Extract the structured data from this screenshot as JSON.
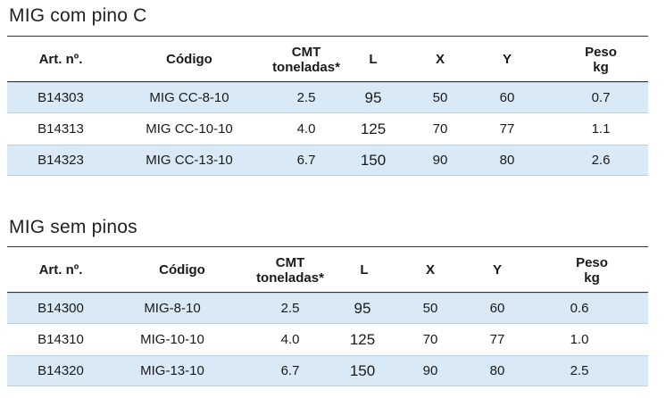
{
  "tables": [
    {
      "title": "MIG com pino C",
      "headers": {
        "art": "Art. nº.",
        "codigo": "Código",
        "cmt1": "CMT",
        "cmt2": "toneladas*",
        "l": "L",
        "x": "X",
        "y": "Y",
        "peso1": "Peso",
        "peso2": "kg"
      },
      "rows": [
        {
          "art": "B14303",
          "codigo": "MIG CC-8-10",
          "cmt": "2.5",
          "l": "95",
          "x": "50",
          "y": "60",
          "peso": "0.7"
        },
        {
          "art": "B14313",
          "codigo": "MIG CC-10-10",
          "cmt": "4.0",
          "l": "125",
          "x": "70",
          "y": "77",
          "peso": "1.1"
        },
        {
          "art": "B14323",
          "codigo": "MIG CC-13-10",
          "cmt": "6.7",
          "l": "150",
          "x": "90",
          "y": "80",
          "peso": "2.6"
        }
      ]
    },
    {
      "title": "MIG sem pinos",
      "headers": {
        "art": "Art. nº.",
        "codigo": "Código",
        "cmt1": "CMT",
        "cmt2": "toneladas*",
        "l": "L",
        "x": "X",
        "y": "Y",
        "peso1": "Peso",
        "peso2": "kg"
      },
      "rows": [
        {
          "art": "B14300",
          "codigo": "MIG-8-10",
          "cmt": "2.5",
          "l": "95",
          "x": "50",
          "y": "60",
          "peso": "0.6"
        },
        {
          "art": "B14310",
          "codigo": "MIG-10-10",
          "cmt": "4.0",
          "l": "125",
          "x": "70",
          "y": "77",
          "peso": "1.0"
        },
        {
          "art": "B14320",
          "codigo": "MIG-13-10",
          "cmt": "6.7",
          "l": "150",
          "x": "90",
          "y": "80",
          "peso": "2.5"
        }
      ]
    }
  ],
  "colors": {
    "row_shade": "#d9e9f5",
    "rule": "#333333"
  }
}
